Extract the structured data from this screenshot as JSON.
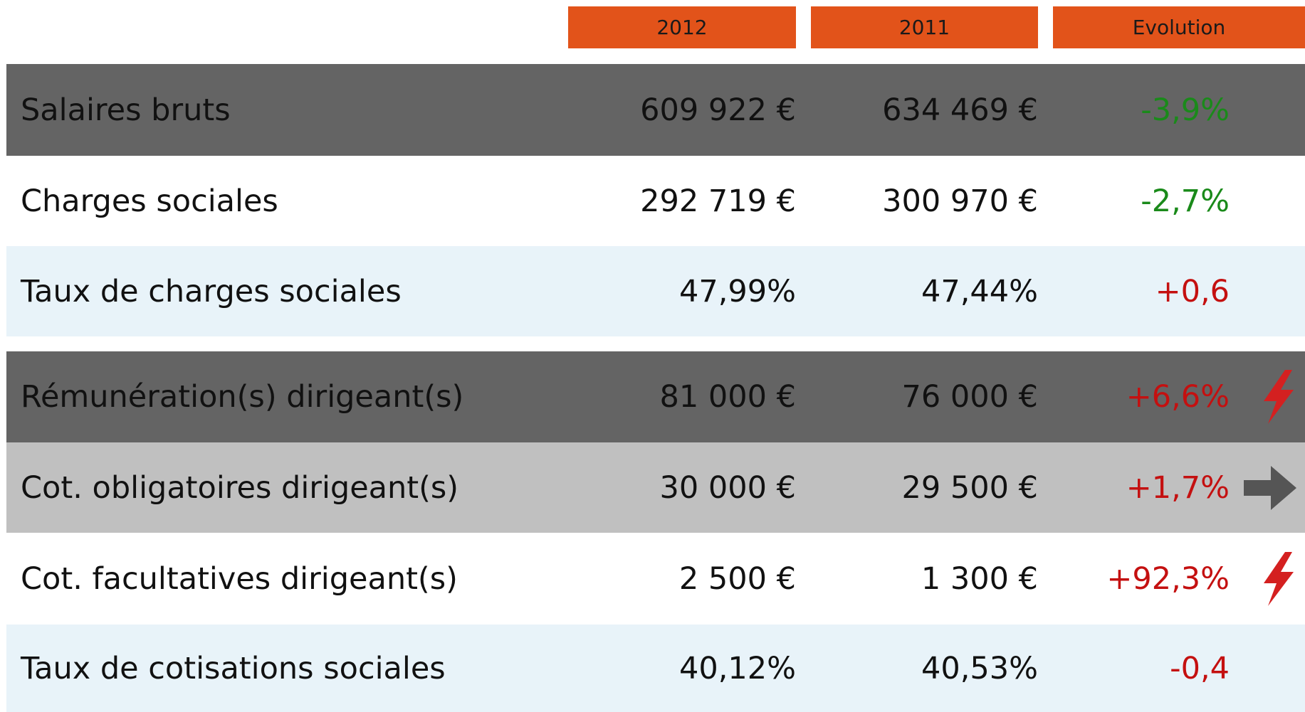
{
  "table": {
    "headers": [
      "2012",
      "2011",
      "Evolution"
    ],
    "rows": [
      [
        "Salaires bruts",
        "609 922 €",
        "634 469 €",
        "-3,9%"
      ],
      [
        "Charges sociales",
        "292 719 €",
        "300 970 €",
        "-2,7%"
      ],
      [
        "Taux de charges sociales",
        "47,99%",
        "47,44%",
        "+0,6"
      ],
      [
        "Rémunération(s) dirigeant(s)",
        "81 000 €",
        "76 000 €",
        "+6,6%"
      ],
      [
        "Cot. obligatoires dirigeant(s)",
        "30 000 €",
        "29 500 €",
        "+1,7%"
      ],
      [
        "Cot. facultatives dirigeant(s)",
        "2 500 €",
        "1 300 €",
        "+92,3%"
      ],
      [
        "Taux de cotisations sociales",
        "40,12%",
        "40,53%",
        "-0,4"
      ]
    ]
  }
}
